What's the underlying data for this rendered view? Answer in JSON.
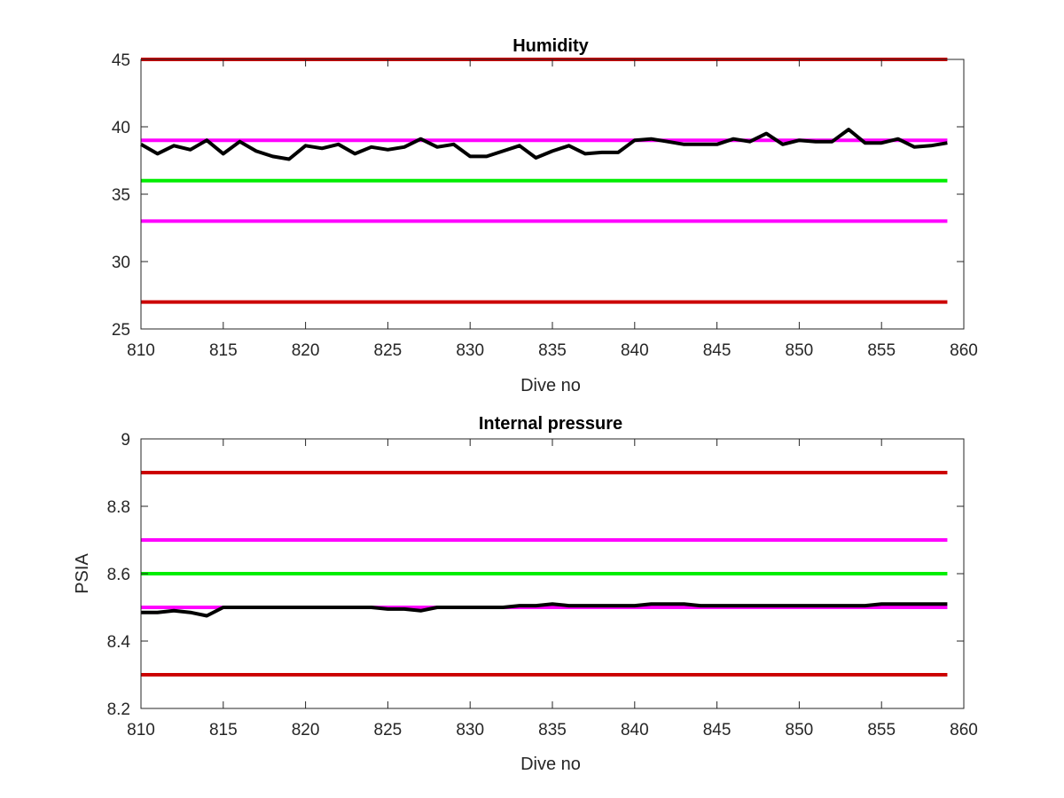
{
  "chart_data": [
    {
      "type": "line",
      "title": "Humidity",
      "xlabel": "Dive no",
      "ylabel": "",
      "xlim": [
        810,
        860
      ],
      "ylim": [
        25,
        45
      ],
      "xticks": [
        "810",
        "815",
        "820",
        "825",
        "830",
        "835",
        "840",
        "845",
        "850",
        "855",
        "860"
      ],
      "yticks": [
        "25",
        "30",
        "35",
        "40",
        "45"
      ],
      "grid": false,
      "reference_lines": [
        {
          "y": 45,
          "color": "#cc0000"
        },
        {
          "y": 39,
          "color": "#ff00ff"
        },
        {
          "y": 36,
          "color": "#00ee00"
        },
        {
          "y": 33,
          "color": "#ff00ff"
        },
        {
          "y": 27,
          "color": "#cc0000"
        }
      ],
      "series": [
        {
          "color": "#000000",
          "x": [
            810,
            811,
            812,
            813,
            814,
            815,
            816,
            817,
            818,
            819,
            820,
            821,
            822,
            823,
            824,
            825,
            826,
            827,
            828,
            829,
            830,
            831,
            832,
            833,
            834,
            835,
            836,
            837,
            838,
            839,
            840,
            841,
            842,
            843,
            844,
            845,
            846,
            847,
            848,
            849,
            850,
            851,
            852,
            853,
            854,
            855,
            856,
            857,
            858,
            859
          ],
          "y": [
            38.7,
            38.0,
            38.6,
            38.3,
            39.0,
            38.0,
            38.9,
            38.2,
            37.8,
            37.6,
            38.6,
            38.4,
            38.7,
            38.0,
            38.5,
            38.3,
            38.5,
            39.1,
            38.5,
            38.7,
            37.8,
            37.8,
            38.2,
            38.6,
            37.7,
            38.2,
            38.6,
            38.0,
            38.1,
            38.1,
            39.0,
            39.1,
            38.9,
            38.7,
            38.7,
            38.7,
            39.1,
            38.9,
            39.5,
            38.7,
            39.0,
            38.9,
            38.9,
            39.8,
            38.8,
            38.8,
            39.1,
            38.5,
            38.6,
            38.8
          ]
        }
      ]
    },
    {
      "type": "line",
      "title": "Internal pressure",
      "xlabel": "Dive no",
      "ylabel": "PSIA",
      "xlim": [
        810,
        860
      ],
      "ylim": [
        8.2,
        9.0
      ],
      "xticks": [
        "810",
        "815",
        "820",
        "825",
        "830",
        "835",
        "840",
        "845",
        "850",
        "855",
        "860"
      ],
      "yticks": [
        "8.2",
        "8.4",
        "8.6",
        "8.8",
        "9"
      ],
      "grid": false,
      "reference_lines": [
        {
          "y": 8.9,
          "color": "#cc0000"
        },
        {
          "y": 8.7,
          "color": "#ff00ff"
        },
        {
          "y": 8.6,
          "color": "#00ee00"
        },
        {
          "y": 8.5,
          "color": "#ff00ff"
        },
        {
          "y": 8.3,
          "color": "#cc0000"
        }
      ],
      "series": [
        {
          "color": "#000000",
          "x": [
            810,
            811,
            812,
            813,
            814,
            815,
            816,
            817,
            818,
            819,
            820,
            821,
            822,
            823,
            824,
            825,
            826,
            827,
            828,
            829,
            830,
            831,
            832,
            833,
            834,
            835,
            836,
            837,
            838,
            839,
            840,
            841,
            842,
            843,
            844,
            845,
            846,
            847,
            848,
            849,
            850,
            851,
            852,
            853,
            854,
            855,
            856,
            857,
            858,
            859
          ],
          "y": [
            8.485,
            8.485,
            8.49,
            8.485,
            8.475,
            8.5,
            8.5,
            8.5,
            8.5,
            8.5,
            8.5,
            8.5,
            8.5,
            8.5,
            8.5,
            8.495,
            8.495,
            8.49,
            8.5,
            8.5,
            8.5,
            8.5,
            8.5,
            8.505,
            8.505,
            8.51,
            8.505,
            8.505,
            8.505,
            8.505,
            8.505,
            8.51,
            8.51,
            8.51,
            8.505,
            8.505,
            8.505,
            8.505,
            8.505,
            8.505,
            8.505,
            8.505,
            8.505,
            8.505,
            8.505,
            8.51,
            8.51,
            8.51,
            8.51,
            8.51
          ]
        }
      ]
    }
  ]
}
